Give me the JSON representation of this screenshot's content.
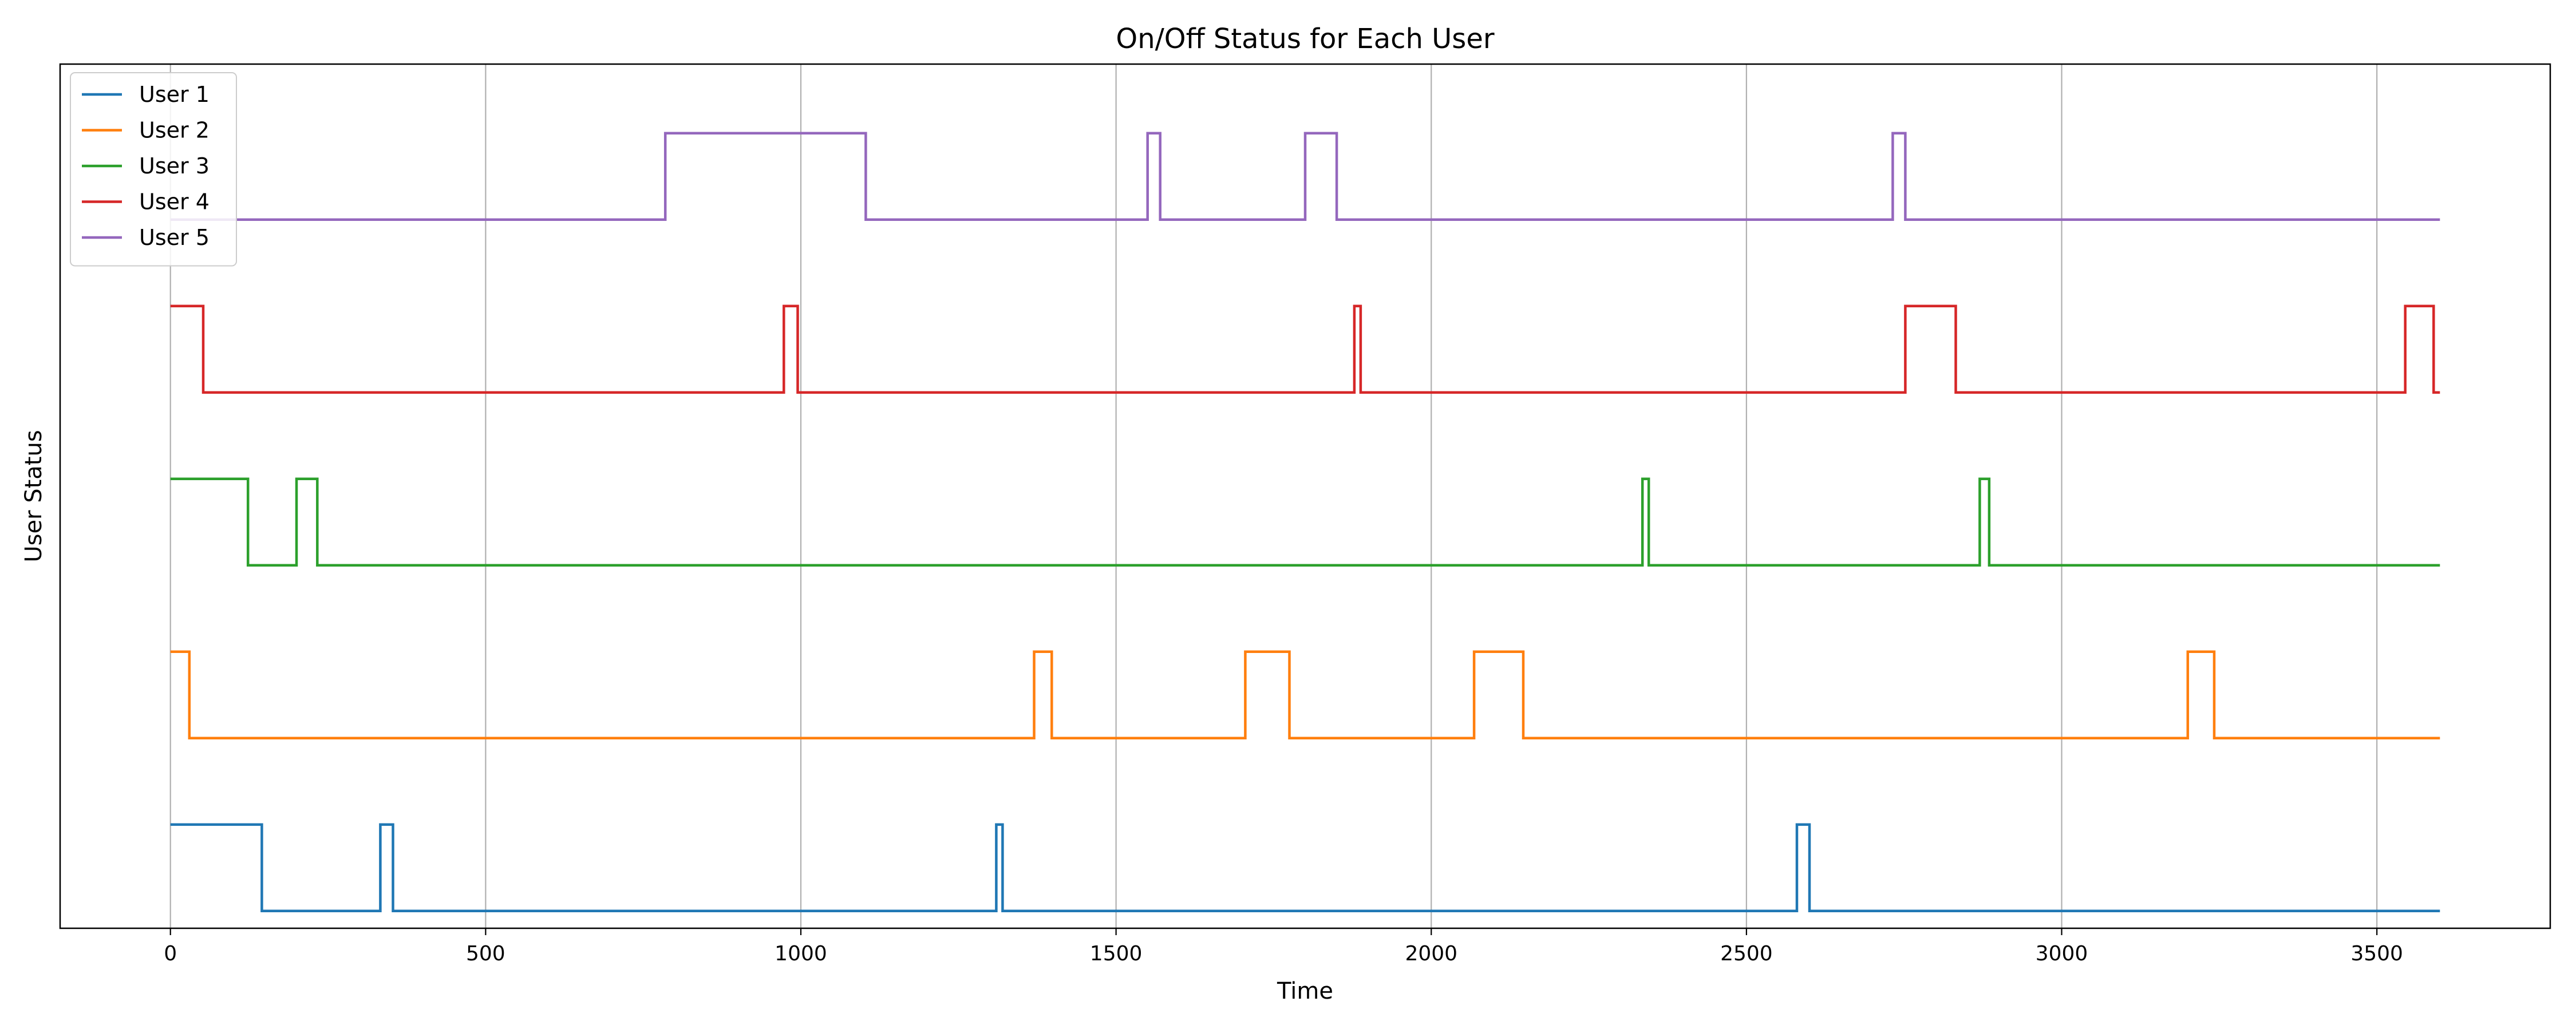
{
  "chart_data": {
    "type": "line",
    "step": true,
    "title": "On/Off Status for Each User",
    "xlabel": "Time",
    "ylabel": "User Status",
    "xlim": [
      -175,
      3775
    ],
    "ylim": [
      -0.2,
      9.8
    ],
    "xticks": [
      0,
      500,
      1000,
      1500,
      2000,
      2500,
      3000,
      3500
    ],
    "yticks_shown": false,
    "grid": "x-only",
    "legend": {
      "position": "top-left"
    },
    "series": [
      {
        "name": "User 1",
        "color": "#1f77b4",
        "offset": 0,
        "x": [
          0,
          145,
          333,
          353,
          1310,
          1320,
          2580,
          2600,
          3600
        ],
        "y": [
          1,
          0,
          1,
          0,
          1,
          0,
          1,
          0,
          0
        ]
      },
      {
        "name": "User 2",
        "color": "#ff7f0e",
        "offset": 2,
        "x": [
          0,
          30,
          1370,
          1398,
          1705,
          1775,
          2068,
          2146,
          3200,
          3242,
          3600
        ],
        "y": [
          1,
          0,
          1,
          0,
          1,
          0,
          1,
          0,
          1,
          0,
          0
        ]
      },
      {
        "name": "User 3",
        "color": "#2ca02c",
        "offset": 4,
        "x": [
          0,
          123,
          200,
          233,
          2335,
          2345,
          2870,
          2885,
          3600
        ],
        "y": [
          1,
          0,
          1,
          0,
          1,
          0,
          1,
          0,
          0
        ]
      },
      {
        "name": "User 4",
        "color": "#d62728",
        "offset": 6,
        "x": [
          0,
          52,
          973,
          995,
          1878,
          1888,
          2752,
          2832,
          3545,
          3590,
          3600
        ],
        "y": [
          1,
          0,
          1,
          0,
          1,
          0,
          1,
          0,
          1,
          0,
          0
        ]
      },
      {
        "name": "User 5",
        "color": "#9467bd",
        "offset": 8,
        "x": [
          0,
          785,
          1103,
          1550,
          1570,
          1800,
          1850,
          2732,
          2752,
          3600
        ],
        "y": [
          0,
          1,
          0,
          1,
          0,
          1,
          0,
          1,
          0,
          0
        ]
      }
    ]
  }
}
